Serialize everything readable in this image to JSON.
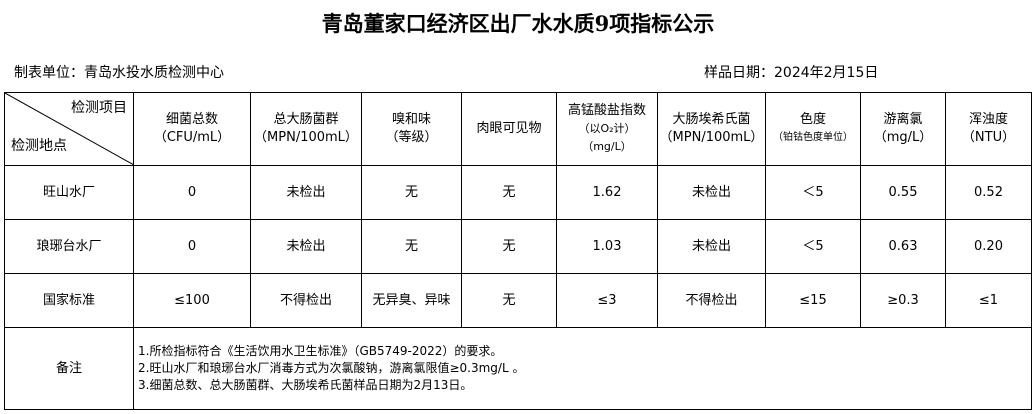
{
  "title": "青岛董家口经济区出厂水水质9项指标公示",
  "unit": "制表单位：青岛水投水质检测中心",
  "sample_date": "样品日期：2024年2月15日",
  "header": {
    "item_label": "检测项目",
    "site_label": "检测地点",
    "columns": [
      [
        "细菌总数",
        "（CFU/mL）"
      ],
      [
        "总大肠菌群",
        "（MPN/100mL）"
      ],
      [
        "嗅和味",
        "（等级）"
      ],
      [
        "肉眼可见物",
        ""
      ],
      [
        "高锰酸盐指数",
        "（以O₂计）",
        "（mg/L）"
      ],
      [
        "大肠埃希氏菌",
        "（MPN/100mL）"
      ],
      [
        "色度",
        "（铂钴色度单位）"
      ],
      [
        "游离氯",
        "（mg/L）"
      ],
      [
        "浑浊度",
        "（NTU）"
      ]
    ]
  },
  "rows": [
    {
      "site": "旺山水厂",
      "values": [
        "0",
        "未检出",
        "无",
        "无",
        "1.62",
        "未检出",
        "＜5",
        "0.55",
        "0.52"
      ]
    },
    {
      "site": "琅琊台水厂",
      "values": [
        "0",
        "未检出",
        "无",
        "无",
        "1.03",
        "未检出",
        "＜5",
        "0.63",
        "0.20"
      ]
    },
    {
      "site": "国家标准",
      "values": [
        "≤100",
        "不得检出",
        "无异臭、异味",
        "无",
        "≤3",
        "不得检出",
        "≤15",
        "≥0.3",
        "≤1"
      ]
    }
  ],
  "notes": {
    "label": "备注",
    "lines": [
      "1.所检指标符合《生活饮用水卫生标准》（GB5749-2022）的要求。",
      "2.旺山水厂和琅琊台水厂消毒方式为次氯酸钠，游离氯限值≥0.3mg/L 。",
      "3.细菌总数、总大肠菌群、大肠埃希氏菌样品日期为2月13日。"
    ]
  }
}
